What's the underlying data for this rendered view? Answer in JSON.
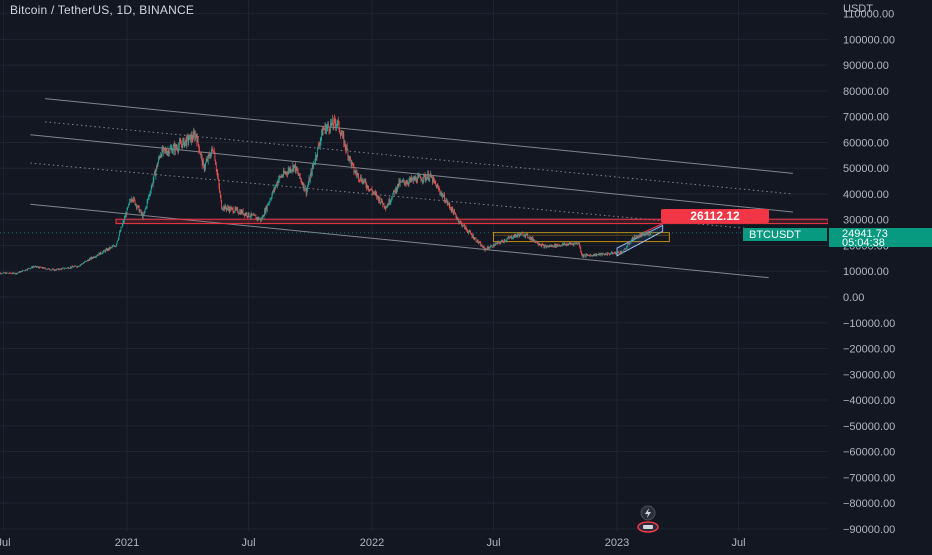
{
  "header": {
    "title": "Bitcoin / TetherUS, 1D, BINANCE",
    "currency": "USDT"
  },
  "colors": {
    "background": "#131722",
    "up": "#26a69a",
    "down": "#ef5350",
    "price_tag": "#089981",
    "target_tag": "#f23645",
    "channel": "#9598a1",
    "range_box": "#f7a600",
    "zone": "#f23645",
    "wedge": "#5b9cf6"
  },
  "chart_data": {
    "type": "candlestick",
    "symbol": "BTCUSDT",
    "interval": "1D",
    "exchange": "BINANCE",
    "ylim": [
      -92000,
      113000
    ],
    "y_ticks": [
      110000,
      100000,
      90000,
      80000,
      70000,
      60000,
      50000,
      40000,
      30000,
      20000,
      10000,
      0,
      -10000,
      -20000,
      -30000,
      -40000,
      -50000,
      -60000,
      -70000,
      -80000,
      -90000
    ],
    "y_tick_labels": [
      "110000.00",
      "100000.00",
      "90000.00",
      "80000.00",
      "70000.00",
      "60000.00",
      "50000.00",
      "40000.00",
      "30000.00",
      "20000.00",
      "10000.00",
      "0.00",
      "−10000.00",
      "−20000.00",
      "−30000.00",
      "−40000.00",
      "−50000.00",
      "−60000.00",
      "−70000.00",
      "−80000.00",
      "−90000.00"
    ],
    "x_ticks": [
      "Jul",
      "2021",
      "Jul",
      "2022",
      "Jul",
      "2023",
      "Jul"
    ],
    "x_tick_dates": [
      "2020-07-01",
      "2021-01-01",
      "2021-07-01",
      "2022-01-01",
      "2022-07-01",
      "2023-01-01",
      "2023-07-01"
    ],
    "price_path": [
      [
        "2020-06-20",
        9300
      ],
      [
        "2020-07-20",
        9200
      ],
      [
        "2020-08-15",
        11800
      ],
      [
        "2020-09-15",
        10500
      ],
      [
        "2020-10-20",
        12000
      ],
      [
        "2020-11-15",
        16000
      ],
      [
        "2020-12-15",
        20000
      ],
      [
        "2021-01-08",
        39000
      ],
      [
        "2021-01-25",
        31000
      ],
      [
        "2021-02-20",
        56000
      ],
      [
        "2021-03-15",
        58000
      ],
      [
        "2021-04-14",
        63000
      ],
      [
        "2021-04-25",
        50000
      ],
      [
        "2021-05-10",
        58000
      ],
      [
        "2021-05-22",
        35000
      ],
      [
        "2021-06-20",
        33000
      ],
      [
        "2021-07-20",
        30000
      ],
      [
        "2021-08-15",
        46000
      ],
      [
        "2021-09-07",
        51000
      ],
      [
        "2021-09-25",
        41000
      ],
      [
        "2021-10-20",
        65000
      ],
      [
        "2021-11-10",
        68000
      ],
      [
        "2021-12-05",
        49000
      ],
      [
        "2022-01-22",
        35000
      ],
      [
        "2022-02-10",
        44000
      ],
      [
        "2022-03-28",
        47000
      ],
      [
        "2022-05-12",
        29000
      ],
      [
        "2022-06-18",
        18500
      ],
      [
        "2022-07-30",
        23500
      ],
      [
        "2022-08-15",
        24500
      ],
      [
        "2022-09-15",
        19500
      ],
      [
        "2022-11-05",
        21000
      ],
      [
        "2022-11-10",
        16000
      ],
      [
        "2022-12-20",
        16800
      ],
      [
        "2023-01-10",
        17500
      ],
      [
        "2023-01-25",
        23000
      ],
      [
        "2023-02-20",
        24941
      ]
    ],
    "last_price": 24941.73,
    "last_price_label": "24941.73",
    "countdown": "05:04:38",
    "target_label": "26112.12",
    "annotations": {
      "resistance_zone": [
        28500,
        30200
      ],
      "range_box": [
        21500,
        25000
      ],
      "channel_lines": [
        {
          "start": [
            "2020-09-01",
            77000
          ],
          "end": [
            "2023-09-20",
            48000
          ],
          "style": "solid"
        },
        {
          "start": [
            "2020-09-01",
            68000
          ],
          "end": [
            "2023-09-20",
            40000
          ],
          "style": "dotted"
        },
        {
          "start": [
            "2020-08-10",
            63000
          ],
          "end": [
            "2023-09-20",
            33000
          ],
          "style": "solid"
        },
        {
          "start": [
            "2020-08-10",
            52000
          ],
          "end": [
            "2023-09-20",
            25000
          ],
          "style": "dotted"
        },
        {
          "start": [
            "2020-08-10",
            36000
          ],
          "end": [
            "2023-08-15",
            7500
          ],
          "style": "solid"
        }
      ]
    }
  }
}
